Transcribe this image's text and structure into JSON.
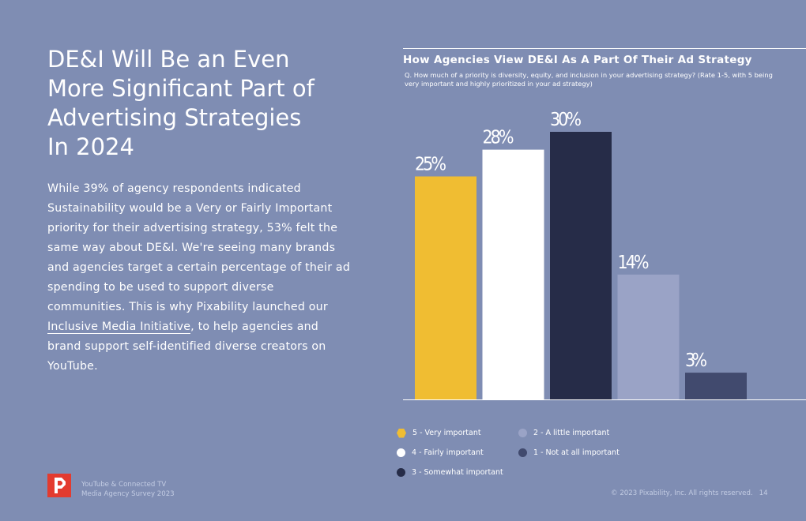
{
  "headline": {
    "lines": [
      "DE&I Will Be an Even",
      "More Significant Part of",
      "Advertising Strategies",
      "In 2024"
    ]
  },
  "body": {
    "text_before_link": "While 39% of agency respondents indicated Sustainability would be a Very or Fairly Important priority for their advertising strategy, 53% felt the same way about DE&I. We're seeing many brands and agencies target a certain percentage of their ad spending to be used to support diverse communities. This is why Pixability launched our ",
    "link_text": "Inclusive Media Initiative",
    "text_after_link": ", to help agencies and brand support self-identified diverse creators on YouTube."
  },
  "chart_data": {
    "type": "bar",
    "title": "How Agencies View DE&I As A Part Of Their Ad Strategy",
    "subtitle": "Q. How much of a priority is diversity, equity, and inclusion in your advertising strategy? (Rate 1-5, with 5 being very important and highly prioritized in your ad strategy)",
    "categories": [
      "5 - Very important",
      "4 - Fairly important",
      "3 - Somewhat important",
      "2 - A little important",
      "1 - Not at all important"
    ],
    "values": [
      25,
      28,
      30,
      14,
      3
    ],
    "value_labels": [
      "25%",
      "28%",
      "30%",
      "14%",
      "3%"
    ],
    "colors": [
      "#f0bd32",
      "#ffffff",
      "#262c48",
      "#9aa3c6",
      "#414a6e"
    ],
    "ylim": [
      0,
      35
    ],
    "xlabel": "",
    "ylabel": "",
    "legend_position": "bottom"
  },
  "legend": {
    "col1": [
      {
        "label": "5 - Very important",
        "color": "#f0bd32",
        "shape": "hexagon"
      },
      {
        "label": "4 - Fairly important",
        "color": "#ffffff",
        "shape": "circle"
      },
      {
        "label": "3 - Somewhat important",
        "color": "#262c48",
        "shape": "circle"
      }
    ],
    "col2": [
      {
        "label": "2 - A little important",
        "color": "#9aa3c6",
        "shape": "circle"
      },
      {
        "label": "1 - Not at all important",
        "color": "#414a6e",
        "shape": "circle"
      }
    ]
  },
  "footer": {
    "line1": "YouTube & Connected TV",
    "line2": "Media Agency Survey 2023",
    "copyright": "© 2023 Pixability, Inc. All rights reserved.",
    "page_number": "14",
    "logo_icon": "pixability-logo-icon",
    "logo_color": "#e33b2f"
  }
}
